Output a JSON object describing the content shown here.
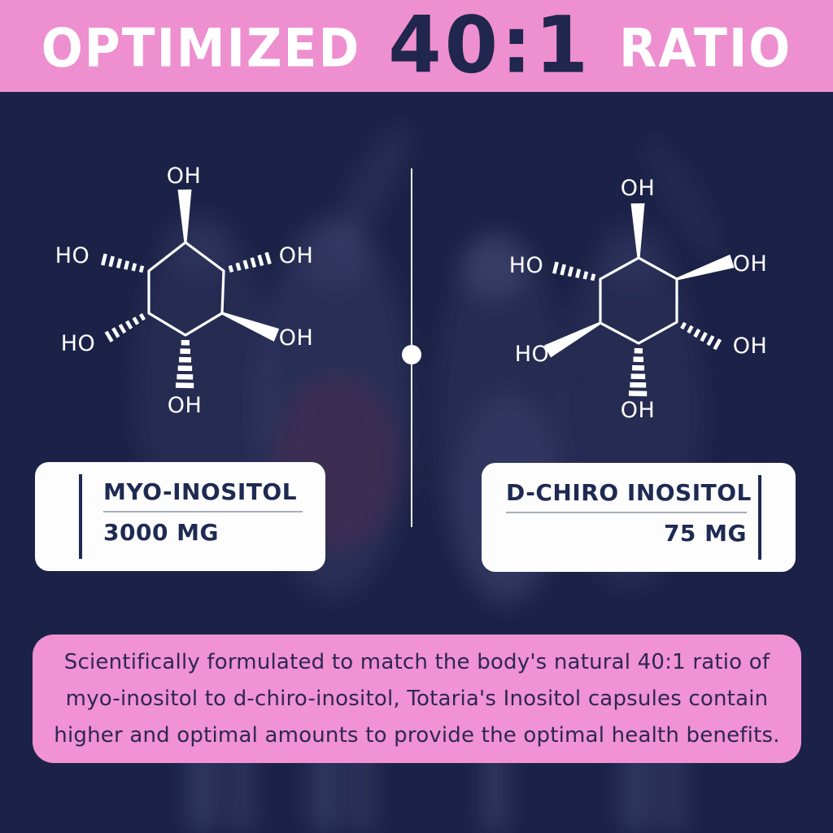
{
  "banner": {
    "left_word": "OPTIMIZED",
    "ratio": "40:1",
    "right_word": "RATIO"
  },
  "molecules": {
    "left": {
      "labels": {
        "top": "OH",
        "upper_left": "HO",
        "upper_right": "OH",
        "lower_left": "HO",
        "lower_right": "OH",
        "bottom": "OH"
      }
    },
    "right": {
      "labels": {
        "top": "OH",
        "upper_left": "HO",
        "upper_right": "OH",
        "lower_left": "HO",
        "lower_right": "OH",
        "bottom": "OH"
      }
    }
  },
  "cards": {
    "left": {
      "title": "MYO-INOSITOL",
      "amount": "3000 MG"
    },
    "right": {
      "title": "D-CHIRO INOSITOL",
      "amount": "75 MG"
    }
  },
  "description": {
    "lines": [
      "Scientifically formulated to match the body's natural 40:1 ratio of",
      "myo-inositol to d-chiro-inositol, Totaria's Inositol capsules contain",
      "higher and optimal amounts to provide the optimal health benefits."
    ]
  },
  "colors": {
    "banner_pink": "#ee8fd0",
    "background_navy": "#1c2247",
    "ratio_text_navy": "#20264d",
    "card_text_navy": "#1e2a52",
    "description_text": "#2e2750",
    "structure_white": "#ffffff"
  }
}
